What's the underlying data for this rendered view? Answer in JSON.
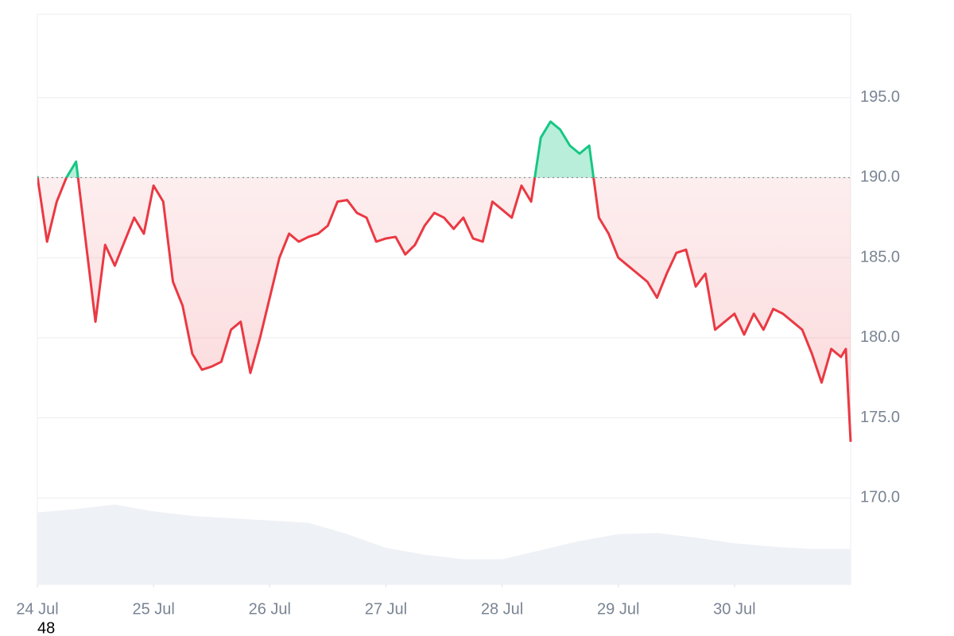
{
  "chart_data": {
    "type": "line",
    "annotation": "48",
    "x": [
      0,
      2,
      4,
      6,
      8,
      10,
      12,
      14,
      16,
      18,
      20,
      22,
      24,
      26,
      28,
      30,
      32,
      34,
      36,
      38,
      40,
      42,
      44,
      46,
      48,
      50,
      52,
      54,
      56,
      58,
      60,
      62,
      64,
      66,
      68,
      70,
      72,
      74,
      76,
      78,
      80,
      82,
      84,
      86,
      88,
      90,
      92,
      94,
      96,
      98,
      100,
      102,
      104,
      106,
      108,
      110,
      112,
      114,
      116,
      118,
      120,
      122,
      124,
      126,
      128,
      130,
      132,
      134,
      136,
      138,
      140,
      142,
      144,
      146,
      148,
      150,
      152,
      154,
      156,
      158,
      160,
      162,
      164,
      166,
      167,
      168
    ],
    "series": [
      {
        "name": "Price",
        "values": [
          190.1,
          186,
          188.5,
          190,
          191,
          186,
          181,
          185.8,
          184.5,
          186,
          187.5,
          186.5,
          189.5,
          188.5,
          183.5,
          182,
          179,
          178,
          178.2,
          178.5,
          180.5,
          181,
          177.8,
          180,
          182.5,
          185,
          186.5,
          186,
          186.3,
          186.5,
          187,
          188.5,
          188.6,
          187.8,
          187.5,
          186,
          186.2,
          186.3,
          185.2,
          185.8,
          187,
          187.8,
          187.5,
          186.8,
          187.5,
          186.2,
          186,
          188.5,
          188,
          187.5,
          189.5,
          188.5,
          192.5,
          193.5,
          193,
          192,
          191.5,
          192,
          187.5,
          186.5,
          185,
          184.5,
          184,
          183.5,
          182.5,
          184,
          185.3,
          185.5,
          183.2,
          184,
          180.5,
          181,
          181.5,
          180.2,
          181.5,
          180.5,
          181.8,
          181.5,
          181,
          180.5,
          179,
          177.2,
          179.3,
          178.8,
          179.3,
          173.5
        ]
      }
    ],
    "baseline": 190,
    "up_color": "#16c784",
    "down_color": "#ea3943",
    "volume": {
      "x": [
        0,
        8,
        16,
        24,
        32,
        40,
        48,
        56,
        64,
        72,
        80,
        88,
        96,
        104,
        112,
        120,
        128,
        136,
        144,
        152,
        160,
        168
      ],
      "values": [
        63,
        66,
        70,
        64,
        60,
        58,
        56,
        54,
        44,
        32,
        26,
        22,
        22,
        30,
        38,
        44,
        45,
        41,
        36,
        33,
        31,
        31
      ],
      "color": "#eef1f5"
    },
    "xlim": [
      0,
      168
    ],
    "xticks": [
      {
        "value": 0,
        "label": "24 Jul"
      },
      {
        "value": 24,
        "label": "25 Jul"
      },
      {
        "value": 48,
        "label": "26 Jul"
      },
      {
        "value": 72,
        "label": "27 Jul"
      },
      {
        "value": 96,
        "label": "28 Jul"
      },
      {
        "value": 120,
        "label": "29 Jul"
      },
      {
        "value": 144,
        "label": "30 Jul"
      }
    ],
    "ylim": [
      164.6,
      200.2
    ],
    "yticks": [
      {
        "value": 170,
        "label": "170.0"
      },
      {
        "value": 175,
        "label": "175.0"
      },
      {
        "value": 180,
        "label": "180.0"
      },
      {
        "value": 185,
        "label": "185.0"
      },
      {
        "value": 190,
        "label": "190.0"
      },
      {
        "value": 195,
        "label": "195.0"
      }
    ],
    "y2lim": [
      0,
      500
    ],
    "grid": true
  }
}
